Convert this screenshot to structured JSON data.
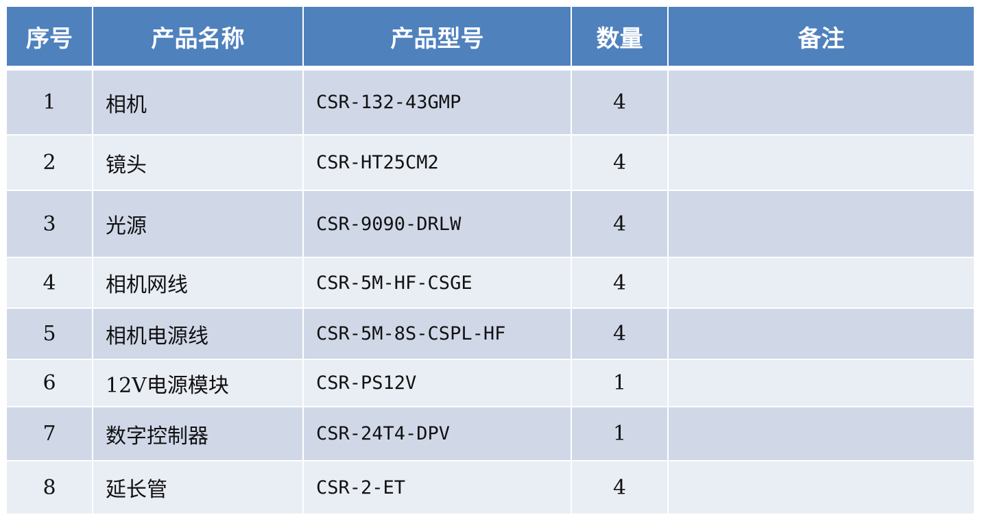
{
  "colors": {
    "header": "#4F81BD",
    "row_odd": "#D0D8E8",
    "row_even": "#E9EDF4"
  },
  "headers": [
    "序号",
    "产品名称",
    "产品型号",
    "数量",
    "备注"
  ],
  "rows": [
    {
      "no": "1",
      "name": "相机",
      "model": "CSR-132-43GMP",
      "qty": "4",
      "note": ""
    },
    {
      "no": "2",
      "name": "镜头",
      "model": "CSR-HT25CM2",
      "qty": "4",
      "note": ""
    },
    {
      "no": "3",
      "name": "光源",
      "model": "CSR-9090-DRLW",
      "qty": "4",
      "note": ""
    },
    {
      "no": "4",
      "name": "相机网线",
      "model": "CSR-5M-HF-CSGE",
      "qty": "4",
      "note": ""
    },
    {
      "no": "5",
      "name": "相机电源线",
      "model": "CSR-5M-8S-CSPL-HF",
      "qty": "4",
      "note": ""
    },
    {
      "no": "6",
      "name": "12V电源模块",
      "model": "CSR-PS12V",
      "qty": "1",
      "note": ""
    },
    {
      "no": "7",
      "name": "数字控制器",
      "model": "CSR-24T4-DPV",
      "qty": "1",
      "note": ""
    },
    {
      "no": "8",
      "name": "延长管",
      "model": "CSR-2-ET",
      "qty": "4",
      "note": ""
    }
  ]
}
